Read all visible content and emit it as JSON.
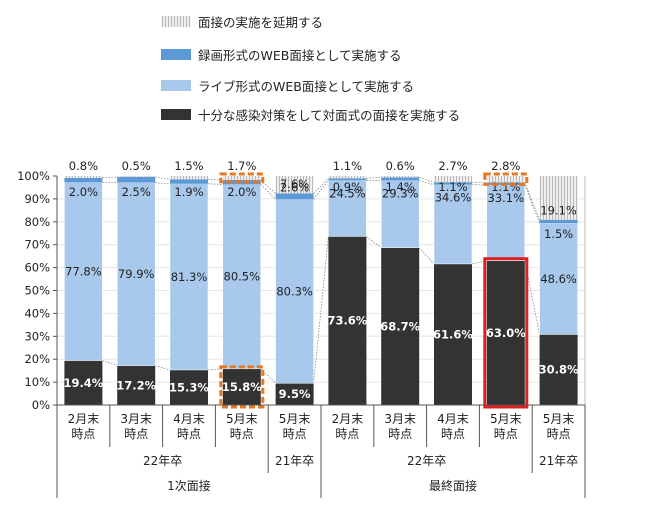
{
  "chart_data": {
    "type": "bar",
    "stacked": true,
    "percent": true,
    "ylim": [
      0,
      100
    ],
    "yticks": [
      "0%",
      "10%",
      "20%",
      "30%",
      "40%",
      "50%",
      "60%",
      "70%",
      "80%",
      "90%",
      "100%"
    ],
    "categories": [
      "2月末\n時点",
      "3月末\n時点",
      "4月末\n時点",
      "5月末\n時点",
      "5月末\n時点",
      "2月末\n時点",
      "3月末\n時点",
      "4月末\n時点",
      "5月末\n時点",
      "5月末\n時点"
    ],
    "groups_level1": [
      {
        "label": "22年卒",
        "from": 0,
        "to": 3
      },
      {
        "label": "21年卒",
        "from": 4,
        "to": 4
      },
      {
        "label": "22年卒",
        "from": 5,
        "to": 8
      },
      {
        "label": "21年卒",
        "from": 9,
        "to": 9
      }
    ],
    "groups_level2": [
      {
        "label": "1次面接",
        "from": 0,
        "to": 4
      },
      {
        "label": "最終面接",
        "from": 5,
        "to": 9
      }
    ],
    "series": [
      {
        "name": "十分な感染対策をして対面式の面接を実施する",
        "color": "#333333",
        "values": [
          19.4,
          17.2,
          15.3,
          15.8,
          9.5,
          73.6,
          68.7,
          61.6,
          63.0,
          30.8
        ],
        "labels": [
          "19.4%",
          "17.2%",
          "15.3%",
          "15.8%",
          "9.5%",
          "73.6%",
          "68.7%",
          "61.6%",
          "63.0%",
          "30.8%"
        ]
      },
      {
        "name": "ライブ形式のWEB面接として実施する",
        "color": "#a8c8ec",
        "values": [
          77.8,
          79.9,
          81.3,
          80.5,
          80.3,
          24.5,
          29.3,
          34.6,
          33.1,
          48.6
        ],
        "labels": [
          "77.8%",
          "79.9%",
          "81.3%",
          "80.5%",
          "80.3%",
          "24.5%",
          "29.3%",
          "34.6%",
          "33.1%",
          "48.6%"
        ]
      },
      {
        "name": "録画形式のWEB面接として実施する",
        "color": "#5b9ad6",
        "values": [
          2.0,
          2.5,
          1.9,
          2.0,
          2.6,
          0.9,
          1.4,
          1.1,
          1.1,
          1.5
        ],
        "labels": [
          "2.0%",
          "2.5%",
          "1.9%",
          "2.0%",
          "2.6%",
          "0.9%",
          "1.4%",
          "1.1%",
          "1.1%",
          "1.5%"
        ]
      },
      {
        "name": "面接の実施を延期する",
        "color": "#d9d9d9",
        "values": [
          0.8,
          0.5,
          1.5,
          1.7,
          7.6,
          1.1,
          0.6,
          2.7,
          2.8,
          19.1
        ],
        "labels": [
          "0.8%",
          "0.5%",
          "1.5%",
          "1.7%",
          "7.6%",
          "1.1%",
          "0.6%",
          "2.7%",
          "2.8%",
          "19.1%"
        ]
      }
    ],
    "legend_order": [
      "面接の実施を延期する",
      "録画形式のWEB面接として実施する",
      "ライブ形式のWEB面接として実施する",
      "十分な感染対策をして対面式の面接を実施する"
    ],
    "legend_placement": "top-center",
    "highlights": [
      {
        "bar": 3,
        "segment": 0,
        "style": "dashed",
        "color": "#e87722"
      },
      {
        "bar": 3,
        "segment": 3,
        "style": "dashed",
        "color": "#e87722"
      },
      {
        "bar": 8,
        "segment": 0,
        "style": "solid",
        "color": "#e02020"
      },
      {
        "bar": 8,
        "segment": 3,
        "style": "dashed",
        "color": "#e87722"
      }
    ]
  }
}
